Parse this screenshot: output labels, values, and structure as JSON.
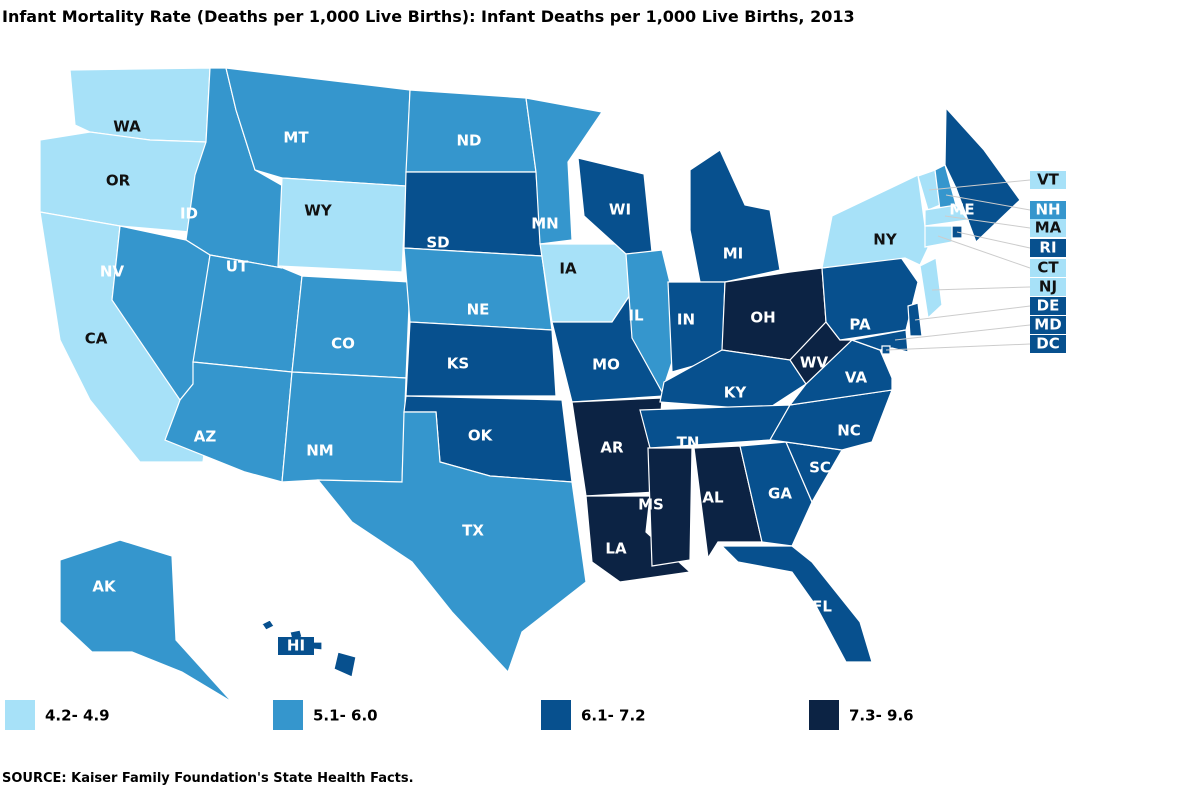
{
  "title": "Infant Mortality Rate (Deaths per 1,000 Live Births): Infant Deaths per 1,000 Live Births, 2013",
  "legend": [
    {
      "label": "4.2- 4.9",
      "color": "#a7e1f8"
    },
    {
      "label": "5.1- 6.0",
      "color": "#3596cd"
    },
    {
      "label": "6.1- 7.2",
      "color": "#07508e"
    },
    {
      "label": "7.3- 9.6",
      "color": "#0c2344"
    }
  ],
  "states": [
    {
      "label": "WA",
      "bin": 0
    },
    {
      "label": "OR",
      "bin": 0
    },
    {
      "label": "CA",
      "bin": 0
    },
    {
      "label": "ID",
      "bin": 1
    },
    {
      "label": "NV",
      "bin": 1
    },
    {
      "label": "MT",
      "bin": 1
    },
    {
      "label": "WY",
      "bin": 0
    },
    {
      "label": "UT",
      "bin": 1
    },
    {
      "label": "AZ",
      "bin": 1
    },
    {
      "label": "CO",
      "bin": 1
    },
    {
      "label": "NM",
      "bin": 1
    },
    {
      "label": "ND",
      "bin": 1
    },
    {
      "label": "SD",
      "bin": 2
    },
    {
      "label": "NE",
      "bin": 1
    },
    {
      "label": "KS",
      "bin": 2
    },
    {
      "label": "OK",
      "bin": 2
    },
    {
      "label": "TX",
      "bin": 1
    },
    {
      "label": "MN",
      "bin": 1
    },
    {
      "label": "IA",
      "bin": 0
    },
    {
      "label": "MO",
      "bin": 2
    },
    {
      "label": "AR",
      "bin": 3
    },
    {
      "label": "LA",
      "bin": 3
    },
    {
      "label": "WI",
      "bin": 2
    },
    {
      "label": "IL",
      "bin": 1
    },
    {
      "label": "MI",
      "bin": 2
    },
    {
      "label": "IN",
      "bin": 2
    },
    {
      "label": "OH",
      "bin": 3
    },
    {
      "label": "KY",
      "bin": 2
    },
    {
      "label": "TN",
      "bin": 2
    },
    {
      "label": "MS",
      "bin": 3
    },
    {
      "label": "AL",
      "bin": 3
    },
    {
      "label": "GA",
      "bin": 2
    },
    {
      "label": "SC",
      "bin": 2
    },
    {
      "label": "NC",
      "bin": 2
    },
    {
      "label": "VA",
      "bin": 2
    },
    {
      "label": "WV",
      "bin": 3
    },
    {
      "label": "FL",
      "bin": 2
    },
    {
      "label": "PA",
      "bin": 2
    },
    {
      "label": "NY",
      "bin": 0
    },
    {
      "label": "ME",
      "bin": 2
    },
    {
      "label": "VT",
      "bin": 0
    },
    {
      "label": "NH",
      "bin": 1
    },
    {
      "label": "MA",
      "bin": 0
    },
    {
      "label": "RI",
      "bin": 2
    },
    {
      "label": "CT",
      "bin": 0
    },
    {
      "label": "NJ",
      "bin": 0
    },
    {
      "label": "DE",
      "bin": 2
    },
    {
      "label": "MD",
      "bin": 2
    },
    {
      "label": "DC",
      "bin": 2
    },
    {
      "label": "AK",
      "bin": 1
    },
    {
      "label": "HI",
      "bin": 2
    }
  ],
  "source": "SOURCE: Kaiser Family Foundation's State Health Facts."
}
